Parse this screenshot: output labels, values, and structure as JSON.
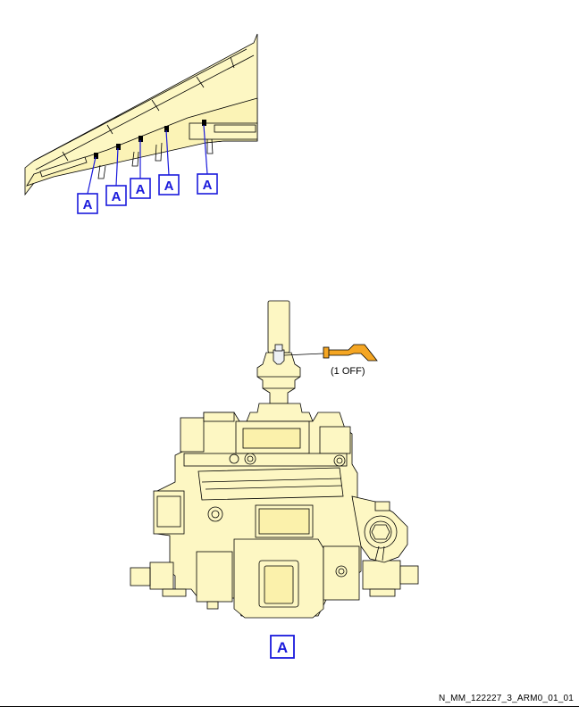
{
  "callouts": {
    "label": "A"
  },
  "quantity_note": "(1 OFF)",
  "figure_id": "N_MM_122227_3_ARM0_01_01",
  "colors": {
    "part_fill": "#fdf7c3",
    "outline": "#000000",
    "callout": "#1a1adc",
    "fastener": "#f5a623"
  }
}
